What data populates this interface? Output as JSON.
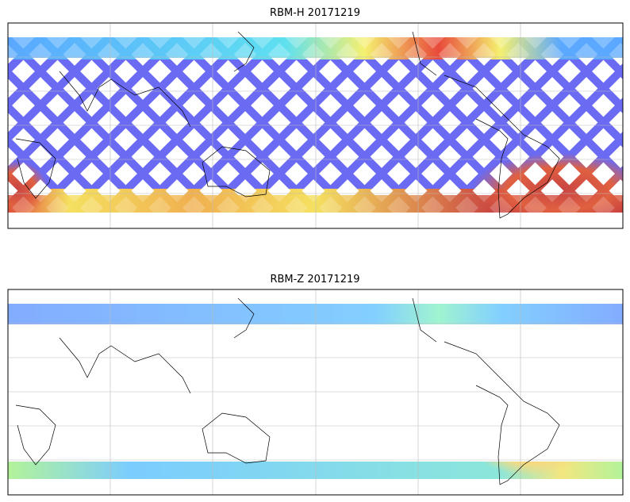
{
  "panels": [
    {
      "title": "RBM-H 20171219"
    },
    {
      "title": "RBM-Z 20171219"
    }
  ]
}
